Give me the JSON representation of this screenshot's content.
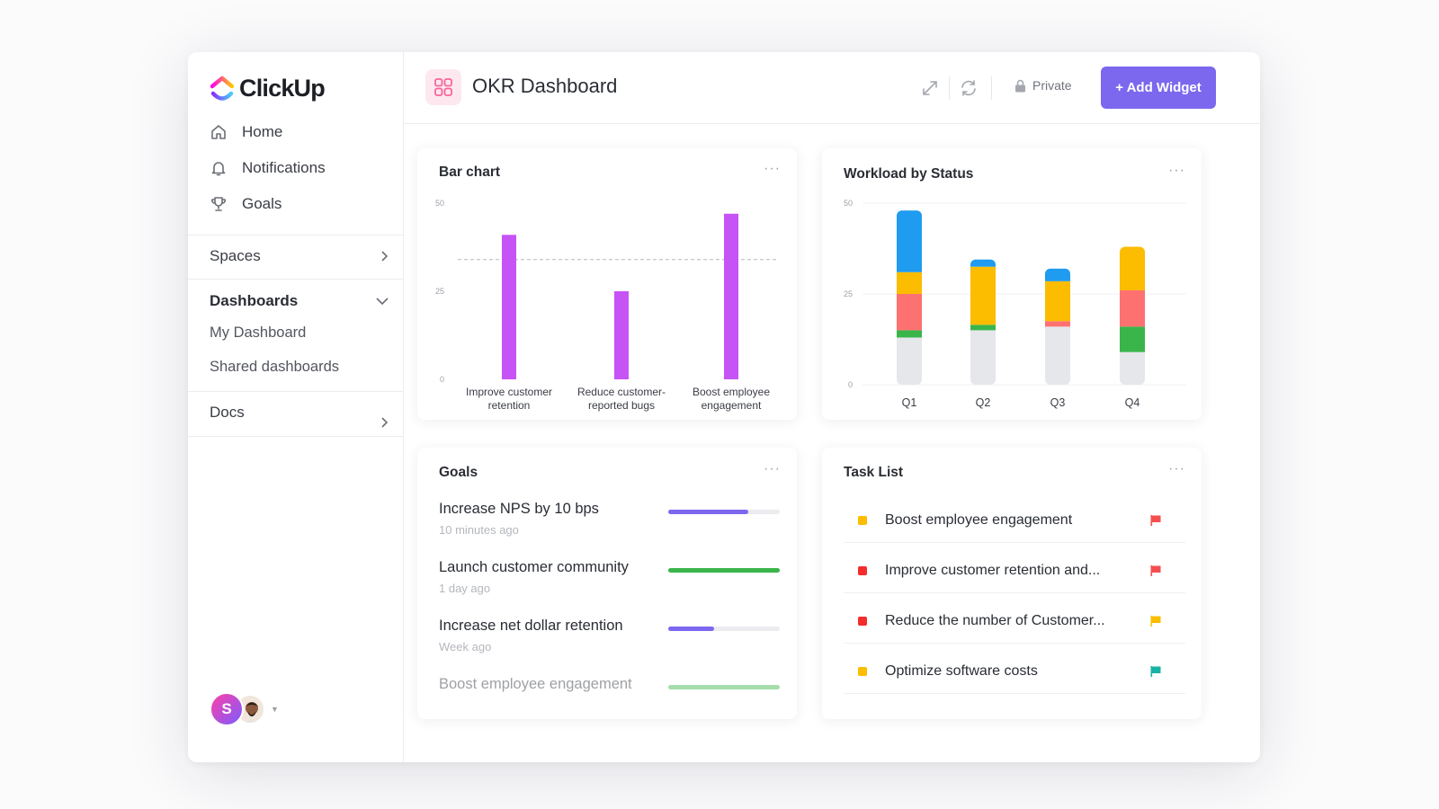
{
  "app": {
    "logo": "ClickUp"
  },
  "sidebar": {
    "nav": [
      {
        "label": "Home",
        "icon": "home-icon"
      },
      {
        "label": "Notifications",
        "icon": "bell-icon"
      },
      {
        "label": "Goals",
        "icon": "trophy-icon"
      }
    ],
    "spaces": "Spaces",
    "dashboards": "Dashboards",
    "dashboard_items": [
      "My Dashboard",
      "Shared dashboards"
    ],
    "docs": "Docs",
    "avatar_initial": "S"
  },
  "header": {
    "title": "OKR Dashboard",
    "private_label": "Private",
    "add_widget_label": "+ Add Widget"
  },
  "widgets": {
    "bar_chart": {
      "title": "Bar chart",
      "more": "···",
      "chart_data": {
        "type": "bar",
        "title": "Bar chart",
        "categories": [
          "Improve customer retention",
          "Reduce customer-reported bugs",
          "Boost employee engagement"
        ],
        "category_lines": [
          [
            "Improve customer",
            "retention"
          ],
          [
            "Reduce customer-",
            "reported bugs"
          ],
          [
            "Boost employee",
            "engagement"
          ]
        ],
        "values": [
          41,
          25,
          47
        ],
        "reference_line": 34,
        "ylim": [
          0,
          50
        ],
        "yticks": [
          0,
          25,
          50
        ],
        "color": "#c653f6"
      }
    },
    "workload": {
      "title": "Workload by Status",
      "more": "···",
      "chart_data": {
        "type": "bar",
        "stacked": true,
        "title": "Workload by Status",
        "categories": [
          "Q1",
          "Q2",
          "Q3",
          "Q4"
        ],
        "ylim": [
          0,
          50
        ],
        "yticks": [
          0,
          25,
          50
        ],
        "series": [
          {
            "color": "#e6e7eb",
            "values": [
              13,
              15,
              16,
              9
            ]
          },
          {
            "color": "#3ab54a",
            "values": [
              2,
              1.5,
              0,
              7
            ]
          },
          {
            "color": "#fd7171",
            "values": [
              10,
              0,
              1.5,
              10
            ]
          },
          {
            "color": "#fcbc00",
            "values": [
              6,
              16,
              11,
              12
            ]
          },
          {
            "color": "#1f9bf0",
            "values": [
              17,
              2,
              3.5,
              0
            ]
          }
        ]
      }
    },
    "goals": {
      "title": "Goals",
      "more": "···",
      "items": [
        {
          "name": "Increase NPS by 10 bps",
          "time": "10 minutes ago",
          "progress": 0.72,
          "color": "#7b68ee"
        },
        {
          "name": "Launch customer community",
          "time": "1 day ago",
          "progress": 1.0,
          "color": "#3ab54a"
        },
        {
          "name": "Increase net dollar retention",
          "time": "Week ago",
          "progress": 0.41,
          "color": "#7b68ee"
        },
        {
          "name": "Boost employee engagement",
          "time": "",
          "progress": 1.0,
          "color": "#3ab54a"
        }
      ]
    },
    "tasks": {
      "title": "Task List",
      "more": "···",
      "items": [
        {
          "name": "Boost employee engagement",
          "status_color": "#fcbc00",
          "flag_color": "#f44f4f"
        },
        {
          "name": "Improve customer retention and...",
          "status_color": "#f42c2c",
          "flag_color": "#f44f4f"
        },
        {
          "name": "Reduce the number of Customer...",
          "status_color": "#f42c2c",
          "flag_color": "#fcbc00"
        },
        {
          "name": "Optimize software costs",
          "status_color": "#fcbc00",
          "flag_color": "#17b3a3"
        }
      ]
    }
  }
}
